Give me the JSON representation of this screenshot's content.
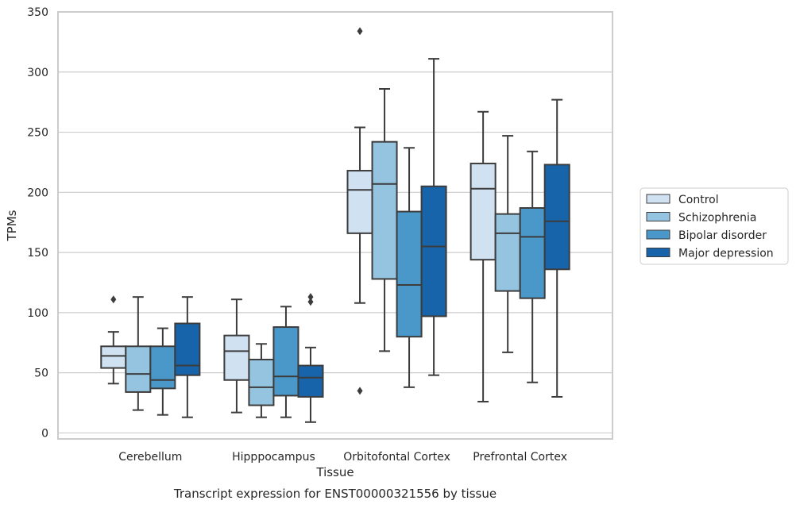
{
  "caption": "Transcript expression for ENST00000321556 by tissue",
  "chart_data": {
    "type": "box",
    "xlabel": "Tissue",
    "ylabel": "TPMs",
    "ylim": [
      -5,
      350
    ],
    "yticks": [
      0,
      50,
      100,
      150,
      200,
      250,
      300,
      350
    ],
    "grid": true,
    "legend_position": "right",
    "categories": [
      "Cerebellum",
      "Hipppocampus",
      "Orbitofontal Cortex",
      "Prefrontal Cortex"
    ],
    "series": [
      {
        "name": "Control",
        "color": "#d0e1f2",
        "boxes": [
          {
            "whisker_low": 41,
            "q1": 54,
            "median": 64,
            "q3": 72,
            "whisker_high": 84,
            "outliers": [
              111
            ]
          },
          {
            "whisker_low": 17,
            "q1": 44,
            "median": 68,
            "q3": 81,
            "whisker_high": 111,
            "outliers": []
          },
          {
            "whisker_low": 108,
            "q1": 166,
            "median": 202,
            "q3": 218,
            "whisker_high": 254,
            "outliers": [
              334,
              35
            ]
          },
          {
            "whisker_low": 26,
            "q1": 144,
            "median": 203,
            "q3": 224,
            "whisker_high": 267,
            "outliers": []
          }
        ]
      },
      {
        "name": "Schizophrenia",
        "color": "#94c4df",
        "boxes": [
          {
            "whisker_low": 19,
            "q1": 34,
            "median": 49,
            "q3": 72,
            "whisker_high": 113,
            "outliers": []
          },
          {
            "whisker_low": 13,
            "q1": 23,
            "median": 38,
            "q3": 61,
            "whisker_high": 74,
            "outliers": []
          },
          {
            "whisker_low": 68,
            "q1": 128,
            "median": 207,
            "q3": 242,
            "whisker_high": 286,
            "outliers": []
          },
          {
            "whisker_low": 67,
            "q1": 118,
            "median": 166,
            "q3": 182,
            "whisker_high": 247,
            "outliers": []
          }
        ]
      },
      {
        "name": "Bipolar disorder",
        "color": "#4a98c9",
        "boxes": [
          {
            "whisker_low": 15,
            "q1": 37,
            "median": 44,
            "q3": 72,
            "whisker_high": 87,
            "outliers": []
          },
          {
            "whisker_low": 13,
            "q1": 31,
            "median": 47,
            "q3": 88,
            "whisker_high": 105,
            "outliers": []
          },
          {
            "whisker_low": 38,
            "q1": 80,
            "median": 123,
            "q3": 184,
            "whisker_high": 237,
            "outliers": []
          },
          {
            "whisker_low": 42,
            "q1": 112,
            "median": 163,
            "q3": 187,
            "whisker_high": 234,
            "outliers": []
          }
        ]
      },
      {
        "name": "Major depression",
        "color": "#1764ab",
        "boxes": [
          {
            "whisker_low": 13,
            "q1": 48,
            "median": 56,
            "q3": 91,
            "whisker_high": 113,
            "outliers": []
          },
          {
            "whisker_low": 9,
            "q1": 30,
            "median": 46,
            "q3": 56,
            "whisker_high": 71,
            "outliers": [
              113,
              109
            ]
          },
          {
            "whisker_low": 48,
            "q1": 97,
            "median": 155,
            "q3": 205,
            "whisker_high": 311,
            "outliers": []
          },
          {
            "whisker_low": 30,
            "q1": 136,
            "median": 176,
            "q3": 223,
            "whisker_high": 277,
            "outliers": []
          }
        ]
      }
    ]
  }
}
